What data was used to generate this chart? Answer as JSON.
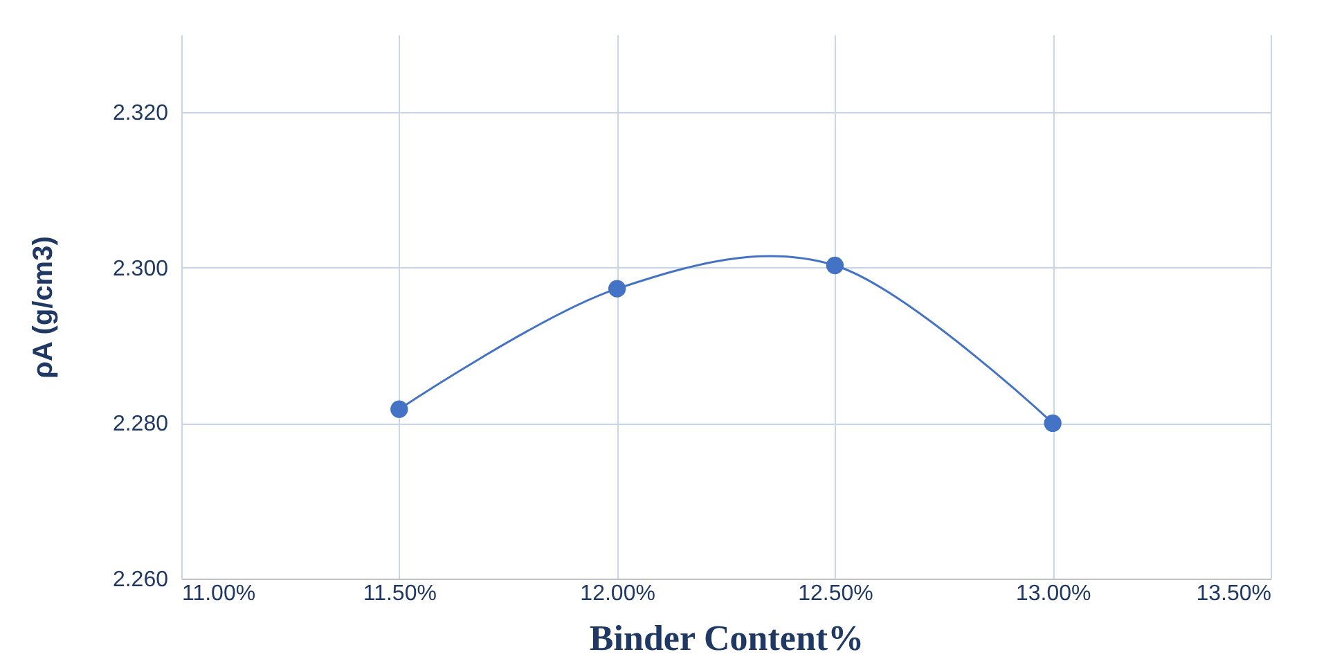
{
  "chart_data": {
    "type": "line",
    "xlabel": "Binder Content%",
    "ylabel": "ρA (g/cm3)",
    "x": [
      11.5,
      12.0,
      12.5,
      13.0
    ],
    "series": [
      {
        "color": "#4472c4",
        "values": [
          2.2818,
          2.2973,
          2.3003,
          2.28
        ]
      }
    ],
    "xlim": [
      11.0,
      13.5
    ],
    "xticks": [
      {
        "value": 11.0,
        "label": "11.00%"
      },
      {
        "value": 11.5,
        "label": "11.50%"
      },
      {
        "value": 12.0,
        "label": "12.00%"
      },
      {
        "value": 12.5,
        "label": "12.50%"
      },
      {
        "value": 13.0,
        "label": "13.00%"
      },
      {
        "value": 13.5,
        "label": "13.50%"
      }
    ],
    "ylim": [
      2.26,
      2.33
    ],
    "yticks": [
      {
        "value": 2.26,
        "label": "2.260"
      },
      {
        "value": 2.28,
        "label": "2.280"
      },
      {
        "value": 2.3,
        "label": "2.300"
      },
      {
        "value": 2.32,
        "label": "2.320"
      }
    ],
    "grid": true,
    "marker": "circle",
    "line_style": "solid"
  }
}
